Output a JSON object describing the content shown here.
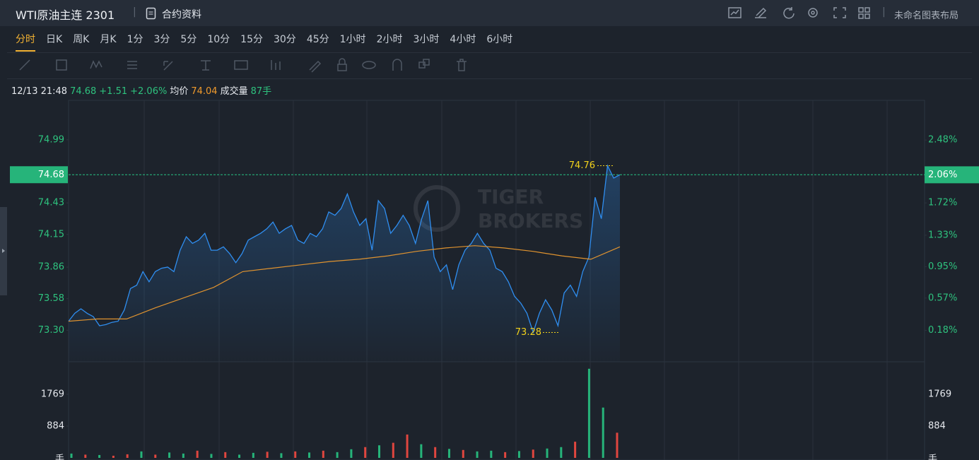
{
  "header": {
    "title": "WTI原油主连 2301",
    "contract": "合约资料",
    "layout": "未命名图表布局"
  },
  "tabs": [
    "分时",
    "日K",
    "周K",
    "月K",
    "1分",
    "3分",
    "5分",
    "10分",
    "15分",
    "30分",
    "45分",
    "1小时",
    "2小时",
    "3小时",
    "4小时",
    "6小时"
  ],
  "active_tab": 0,
  "quote": {
    "time": "12/13 21:48",
    "price": "74.68",
    "change": "+1.51",
    "change_pct": "+2.06%",
    "avg_label": "均价",
    "avg": "74.04",
    "volume_label": "成交量",
    "volume": "87手"
  },
  "chart_data": {
    "type": "line",
    "watermark": [
      "TIGER",
      "BROKERS"
    ],
    "ylim": [
      73.02,
      75.34
    ],
    "yticks": [
      74.99,
      74.43,
      74.15,
      73.86,
      73.58,
      {
        "value": 73.3,
        "label": "73.30"
      }
    ],
    "y2lim": [
      -0.2,
      2.96
    ],
    "y2ticks": [
      {
        "value": 2.48,
        "label": "2.48%"
      },
      {
        "value": 1.72,
        "label": "1.72%"
      },
      {
        "value": 1.33,
        "label": "1.33%"
      },
      {
        "value": 0.95,
        "label": "0.95%"
      },
      {
        "value": 0.57,
        "label": "0.57%"
      },
      {
        "value": 0.18,
        "label": "0.18%"
      }
    ],
    "last_price": 74.68,
    "last_change": {
      "value": 2.06,
      "label": "2.06%"
    },
    "high": 74.76,
    "low": 73.28,
    "series": [
      {
        "color": "#2f8ef0",
        "values": [
          73.38,
          73.45,
          73.49,
          73.45,
          73.42,
          73.34,
          73.35,
          73.37,
          73.38,
          73.48,
          73.67,
          73.7,
          73.82,
          73.73,
          73.82,
          73.85,
          73.86,
          73.82,
          74.01,
          74.13,
          74.07,
          74.1,
          74.16,
          74.01,
          74.01,
          74.04,
          73.98,
          73.9,
          73.98,
          74.1,
          74.13,
          74.16,
          74.2,
          74.26,
          74.16,
          74.2,
          74.23,
          74.1,
          74.07,
          74.16,
          74.13,
          74.2,
          74.35,
          74.32,
          74.38,
          74.51,
          74.35,
          74.23,
          74.29,
          74.01,
          74.45,
          74.38,
          74.16,
          74.23,
          74.32,
          74.23,
          74.07,
          74.29,
          74.45,
          73.95,
          73.82,
          73.88,
          73.66,
          73.88,
          74.01,
          74.07,
          74.16,
          74.07,
          74.01,
          73.85,
          73.82,
          73.73,
          73.6,
          73.54,
          73.45,
          73.28,
          73.45,
          73.57,
          73.48,
          73.34,
          73.63,
          73.7,
          73.6,
          73.82,
          73.95,
          74.48,
          74.29,
          74.76,
          74.65,
          74.68
        ]
      },
      {
        "color": "#e0932f",
        "values": [
          73.38,
          73.4,
          73.4,
          73.5,
          73.59,
          73.68,
          73.82,
          73.85,
          73.88,
          73.91,
          73.93,
          73.96,
          74.0,
          74.03,
          74.05,
          74.03,
          74.0,
          73.96,
          73.93,
          74.04
        ]
      }
    ],
    "volume": {
      "ylim": [
        0,
        2654
      ],
      "yticks": [
        1769,
        884
      ],
      "unit": "手",
      "values": [
        120,
        90,
        80,
        60,
        100,
        180,
        90,
        150,
        120,
        200,
        110,
        160,
        90,
        140,
        170,
        130,
        180,
        150,
        200,
        160,
        240,
        300,
        350,
        420,
        650,
        380,
        300,
        250,
        220,
        180,
        200,
        160,
        190,
        230,
        260,
        300,
        450,
        2480,
        1400,
        700
      ],
      "colors": [
        "#26b47a",
        "#e0463f",
        "#26b47a",
        "#e0463f",
        "#e0463f",
        "#26b47a",
        "#e0463f",
        "#26b47a",
        "#26b47a",
        "#e0463f",
        "#26b47a",
        "#e0463f",
        "#26b47a",
        "#26b47a",
        "#e0463f",
        "#26b47a",
        "#e0463f",
        "#26b47a",
        "#e0463f",
        "#26b47a",
        "#26b47a",
        "#e0463f",
        "#26b47a",
        "#e0463f",
        "#e0463f",
        "#26b47a",
        "#e0463f",
        "#26b47a",
        "#e0463f",
        "#26b47a",
        "#26b47a",
        "#e0463f",
        "#26b47a",
        "#e0463f",
        "#26b47a",
        "#26b47a",
        "#e0463f",
        "#26b47a",
        "#26b47a",
        "#e0463f"
      ]
    }
  }
}
